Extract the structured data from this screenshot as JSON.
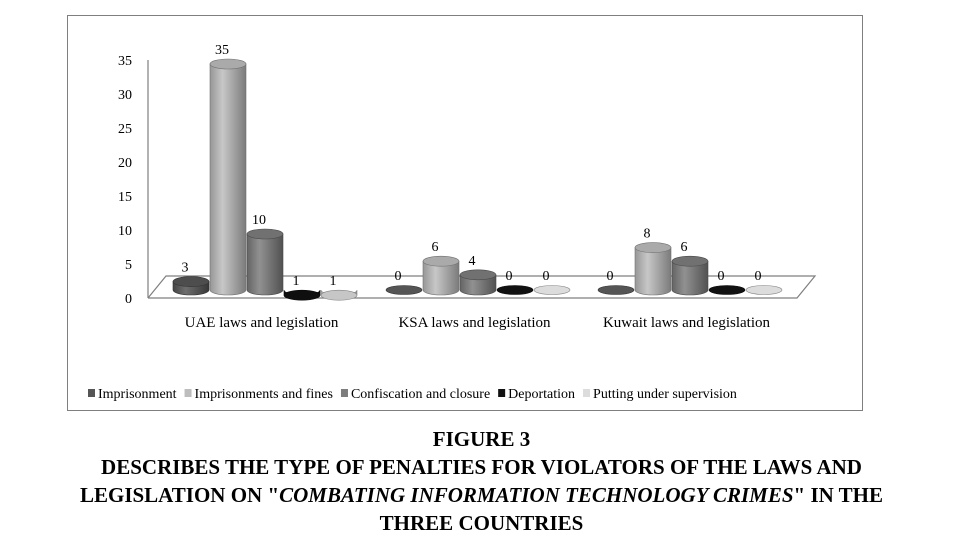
{
  "chart_data": {
    "type": "bar",
    "three_d": true,
    "categories": [
      "UAE laws and legislation",
      "KSA laws and legislation",
      "Kuwait laws and legislation"
    ],
    "series": [
      {
        "name": "Imprisonment",
        "values": [
          3,
          0,
          0
        ],
        "color": "#555555"
      },
      {
        "name": "Imprisonments and fines",
        "values": [
          35,
          6,
          8
        ],
        "color": "#bdbdbd"
      },
      {
        "name": "Confiscation and closure",
        "values": [
          10,
          4,
          6
        ],
        "color": "#7d7d7d"
      },
      {
        "name": "Deportation",
        "values": [
          1,
          0,
          0
        ],
        "color": "#111111"
      },
      {
        "name": "Putting under supervision",
        "values": [
          1,
          0,
          0
        ],
        "color": "#dcdcdc"
      }
    ],
    "yticks": [
      0,
      5,
      10,
      15,
      20,
      25,
      30,
      35
    ],
    "ylim": [
      0,
      35
    ],
    "data_labels": true,
    "grid": false,
    "legend_position": "bottom"
  },
  "figure": {
    "number": "FIGURE 3",
    "caption_line1": "DESCRIBES THE TYPE OF PENALTIES FOR VIOLATORS OF THE LAWS AND",
    "caption_line2_prefix": "LEGISLATION ON \"",
    "caption_line2_italic": "COMBATING INFORMATION TECHNOLOGY CRIMES",
    "caption_line2_suffix": "\" IN THE",
    "caption_line3": "THREE COUNTRIES"
  }
}
